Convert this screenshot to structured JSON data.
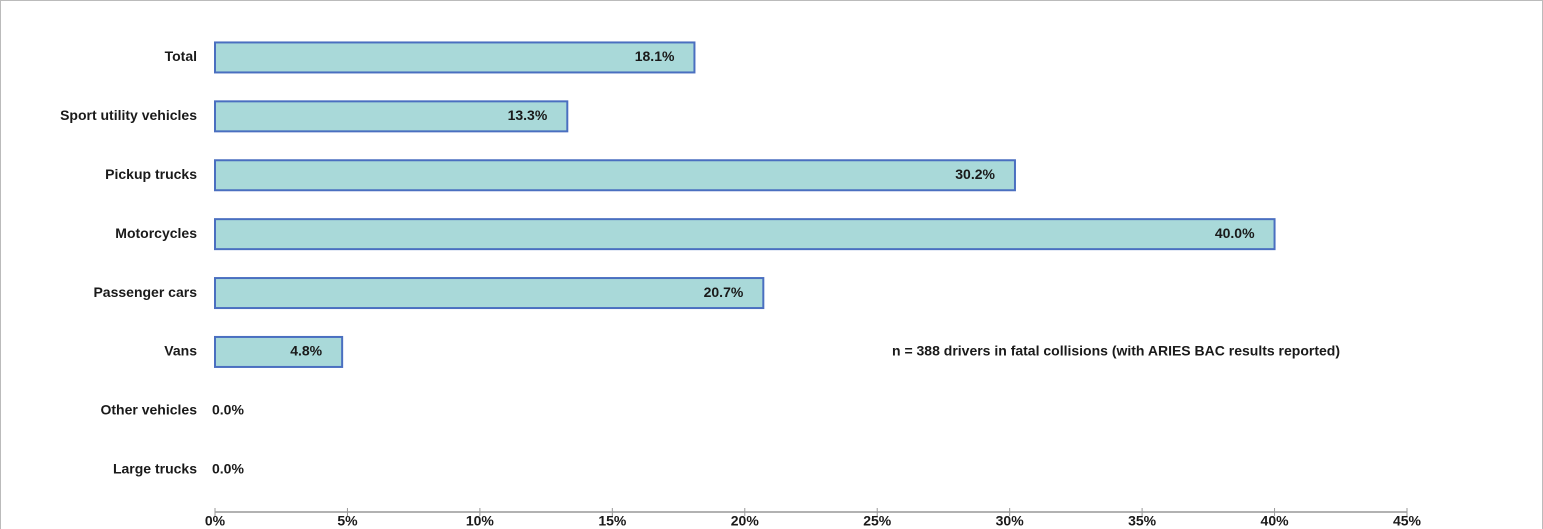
{
  "chart_data": {
    "type": "bar",
    "orientation": "horizontal",
    "categories": [
      "Total",
      "Sport utility vehicles",
      "Pickup trucks",
      "Motorcycles",
      "Passenger cars",
      "Vans",
      "Other vehicles",
      "Large trucks"
    ],
    "values": [
      18.1,
      13.3,
      30.2,
      40.0,
      20.7,
      4.8,
      0.0,
      0.0
    ],
    "value_labels": [
      "18.1%",
      "13.3%",
      "30.2%",
      "40.0%",
      "20.7%",
      "4.8%",
      "0.0%",
      "0.0%"
    ],
    "color": "#a9d9d9",
    "edge_color": "#4a6fc0",
    "xlim": [
      0,
      45
    ],
    "xticks": [
      {
        "value": 0,
        "label": "0%"
      },
      {
        "value": 5,
        "label": "5%"
      },
      {
        "value": 10,
        "label": "10%"
      },
      {
        "value": 15,
        "label": "15%"
      },
      {
        "value": 20,
        "label": "20%"
      },
      {
        "value": 25,
        "label": "25%"
      },
      {
        "value": 30,
        "label": "30%"
      },
      {
        "value": 35,
        "label": "35%"
      },
      {
        "value": 40,
        "label": "40%"
      },
      {
        "value": 45,
        "label": "45%"
      }
    ],
    "annotation": "n = 388 drivers in fatal collisions (with ARIES BAC results reported)"
  }
}
